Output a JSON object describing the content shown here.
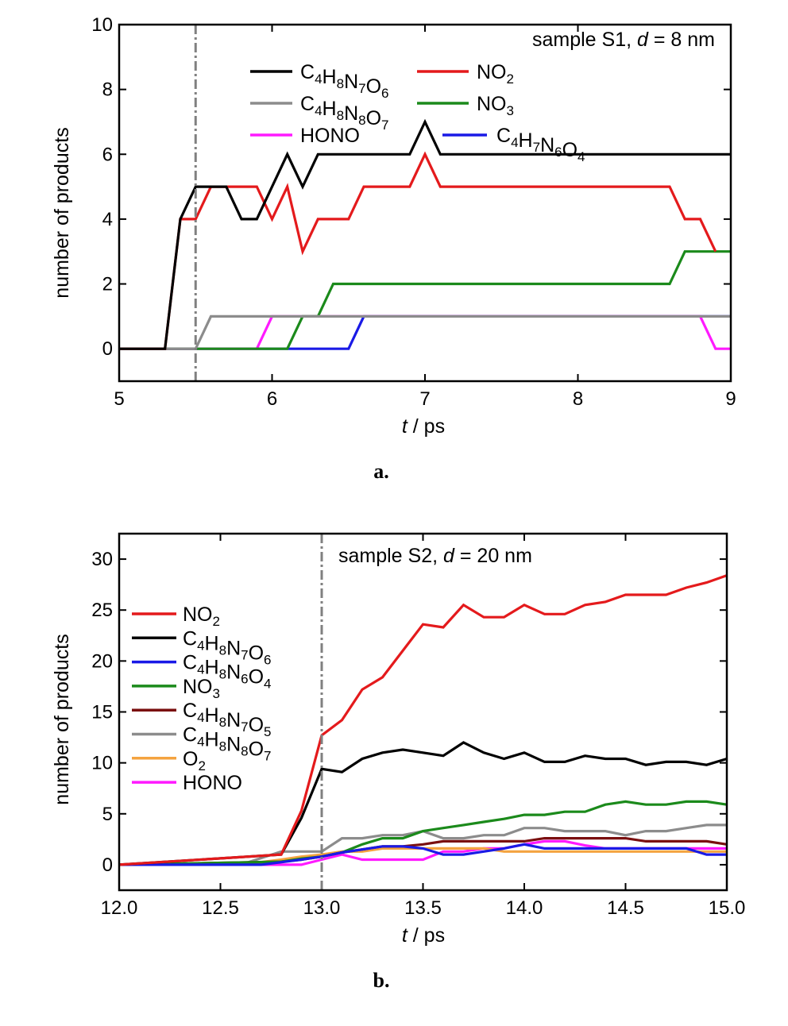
{
  "chart_data": [
    {
      "type": "line",
      "panel_caption": "a.",
      "annotation": "sample S1, d = 8 nm",
      "xlabel": "t / ps",
      "ylabel": "number of products",
      "xlim": [
        5,
        9
      ],
      "ylim": [
        -1,
        10
      ],
      "xticks": [
        5,
        6,
        7,
        8,
        9
      ],
      "yticks": [
        0,
        2,
        4,
        6,
        8,
        10
      ],
      "vline_x": 5.5,
      "legend_layout": "2-column, top",
      "series": [
        {
          "name": "C4H8N7O6",
          "color": "#000000",
          "x": [
            5,
            5.3,
            5.4,
            5.5,
            5.6,
            5.7,
            5.8,
            5.9,
            6.0,
            6.1,
            6.2,
            6.3,
            6.9,
            7.0,
            7.1,
            9.0
          ],
          "y": [
            0,
            0,
            4,
            5,
            5,
            5,
            4,
            4,
            5,
            6,
            5,
            6,
            6,
            7,
            6,
            6
          ]
        },
        {
          "name": "NO2",
          "color": "#e41a1c",
          "x": [
            5,
            5.3,
            5.4,
            5.5,
            5.6,
            5.9,
            6.0,
            6.1,
            6.2,
            6.3,
            6.5,
            6.6,
            6.9,
            7.0,
            7.1,
            8.6,
            8.7,
            8.8,
            8.9
          ],
          "y": [
            0,
            0,
            4,
            4,
            5,
            5,
            4,
            5,
            3,
            4,
            4,
            5,
            5,
            6,
            5,
            5,
            4,
            4,
            3
          ]
        },
        {
          "name": "C4H8N8O7",
          "color": "#8c8c8c",
          "x": [
            5,
            5.5,
            5.6,
            6.3,
            6.4,
            9.0
          ],
          "y": [
            0,
            0,
            1,
            1,
            1,
            1
          ]
        },
        {
          "name": "NO3",
          "color": "#1b8a1b",
          "x": [
            5,
            6.1,
            6.2,
            6.3,
            6.4,
            8.6,
            8.7,
            9.0
          ],
          "y": [
            0,
            0,
            1,
            1,
            2,
            2,
            3,
            3
          ]
        },
        {
          "name": "HONO",
          "color": "#ff1aff",
          "x": [
            5,
            5.9,
            6.0,
            8.8,
            8.9,
            9.0
          ],
          "y": [
            0,
            0,
            1,
            1,
            0,
            0
          ]
        },
        {
          "name": "C4H7N6O4",
          "color": "#1a1ae6",
          "x": [
            5,
            6.5,
            6.6,
            9.0
          ],
          "y": [
            0,
            0,
            1,
            1
          ]
        }
      ]
    },
    {
      "type": "line",
      "panel_caption": "b.",
      "annotation": "sample S2, d = 20 nm",
      "xlabel": "t / ps",
      "ylabel": "number of products",
      "xlim": [
        12.0,
        15.0
      ],
      "ylim": [
        -2.5,
        32.5
      ],
      "xticks": [
        "12.0",
        "12.5",
        "13.0",
        "13.5",
        "14.0",
        "14.5",
        "15.0"
      ],
      "yticks": [
        0,
        5,
        10,
        15,
        20,
        25,
        30
      ],
      "vline_x": 13.0,
      "legend_layout": "1-column, left",
      "series": [
        {
          "name": "NO2",
          "color": "#e41a1c",
          "x": [
            12.0,
            12.8,
            12.9,
            13.0,
            13.1,
            13.2,
            13.3,
            13.4,
            13.5,
            13.6,
            13.7,
            13.8,
            13.9,
            14.0,
            14.1,
            14.2,
            14.3,
            14.4,
            14.5,
            14.6,
            14.7,
            14.8,
            14.9,
            15.0
          ],
          "y": [
            0,
            1,
            5.3,
            12.7,
            14.2,
            17.2,
            18.4,
            21,
            23.6,
            23.3,
            25.5,
            24.3,
            24.3,
            25.5,
            24.6,
            24.6,
            25.5,
            25.8,
            26.5,
            26.5,
            26.5,
            27.2,
            27.7,
            28.4
          ]
        },
        {
          "name": "C4H8N7O6",
          "color": "#000000",
          "x": [
            12.0,
            12.8,
            12.9,
            13.0,
            13.1,
            13.2,
            13.3,
            13.4,
            13.5,
            13.6,
            13.7,
            13.8,
            13.9,
            14.0,
            14.1,
            14.2,
            14.3,
            14.4,
            14.5,
            14.6,
            14.7,
            14.8,
            14.9,
            15.0
          ],
          "y": [
            0,
            1,
            4.6,
            9.4,
            9.1,
            10.4,
            11,
            11.3,
            11,
            10.7,
            12,
            11,
            10.4,
            11,
            10.1,
            10.1,
            10.7,
            10.4,
            10.4,
            9.8,
            10.1,
            10.1,
            9.8,
            10.4
          ]
        },
        {
          "name": "C4H8N6O4",
          "color": "#1a1ae6",
          "x": [
            12.0,
            12.7,
            12.9,
            13.0,
            13.1,
            13.2,
            13.3,
            13.4,
            13.5,
            13.6,
            13.7,
            13.8,
            13.9,
            14.0,
            14.1,
            14.2,
            14.3,
            14.4,
            14.5,
            14.6,
            14.7,
            14.8,
            14.9,
            15.0
          ],
          "y": [
            0,
            0,
            0.5,
            0.8,
            1.2,
            1.5,
            1.8,
            1.8,
            1.6,
            1.0,
            1.0,
            1.3,
            1.6,
            2.0,
            1.6,
            1.6,
            1.6,
            1.6,
            1.6,
            1.6,
            1.6,
            1.6,
            1.0,
            1.0
          ]
        },
        {
          "name": "NO3",
          "color": "#1b8a1b",
          "x": [
            12.0,
            12.8,
            12.9,
            13.0,
            13.1,
            13.2,
            13.3,
            13.4,
            13.5,
            13.6,
            13.7,
            13.8,
            13.9,
            14.0,
            14.1,
            14.2,
            14.3,
            14.4,
            14.5,
            14.6,
            14.7,
            14.8,
            14.9,
            15.0
          ],
          "y": [
            0,
            0.3,
            0.6,
            0.8,
            1.2,
            2.0,
            2.6,
            2.6,
            3.3,
            3.6,
            3.9,
            4.2,
            4.5,
            4.9,
            4.9,
            5.2,
            5.2,
            5.9,
            6.2,
            5.9,
            5.9,
            6.2,
            6.2,
            5.9
          ]
        },
        {
          "name": "C4H8N7O5",
          "color": "#7a0f0f",
          "x": [
            12.0,
            12.8,
            12.9,
            13.0,
            13.1,
            13.2,
            13.3,
            13.4,
            13.5,
            13.6,
            13.7,
            13.8,
            13.9,
            14.0,
            14.1,
            14.2,
            14.3,
            14.4,
            14.5,
            14.6,
            14.7,
            14.8,
            14.9,
            15.0
          ],
          "y": [
            0,
            0.3,
            0.5,
            0.8,
            1.2,
            1.5,
            1.8,
            1.8,
            2.0,
            2.3,
            2.3,
            2.3,
            2.3,
            2.3,
            2.6,
            2.6,
            2.6,
            2.6,
            2.6,
            2.3,
            2.3,
            2.3,
            2.3,
            2.0
          ]
        },
        {
          "name": "C4H8N8O7",
          "color": "#8c8c8c",
          "x": [
            12.0,
            12.6,
            12.8,
            12.9,
            13.0,
            13.1,
            13.2,
            13.3,
            13.4,
            13.5,
            13.6,
            13.7,
            13.8,
            13.9,
            14.0,
            14.1,
            14.2,
            14.3,
            14.4,
            14.5,
            14.6,
            14.7,
            14.8,
            14.9,
            15.0
          ],
          "y": [
            0,
            0,
            1.3,
            1.3,
            1.3,
            2.6,
            2.6,
            2.9,
            2.9,
            3.3,
            2.6,
            2.6,
            2.9,
            2.9,
            3.6,
            3.6,
            3.3,
            3.3,
            3.3,
            2.9,
            3.3,
            3.3,
            3.6,
            3.9,
            3.9
          ]
        },
        {
          "name": "O2",
          "color": "#f4a340",
          "x": [
            12.0,
            12.6,
            12.8,
            12.9,
            13.0,
            13.1,
            13.2,
            13.3,
            13.5,
            13.8,
            13.9,
            14.0,
            15.0
          ],
          "y": [
            0,
            0,
            0.5,
            0.8,
            1.0,
            1.3,
            1.3,
            1.6,
            1.6,
            1.6,
            1.3,
            1.3,
            1.3
          ]
        },
        {
          "name": "HONO",
          "color": "#ff1aff",
          "x": [
            12.0,
            12.9,
            13.0,
            13.1,
            13.2,
            13.3,
            13.4,
            13.5,
            13.6,
            13.7,
            13.8,
            13.9,
            14.0,
            14.1,
            14.2,
            14.3,
            14.4,
            15.0
          ],
          "y": [
            0,
            0,
            0.5,
            1.0,
            0.5,
            0.5,
            0.5,
            0.5,
            1.3,
            1.3,
            1.6,
            1.6,
            2.0,
            2.3,
            2.3,
            1.9,
            1.6,
            1.6
          ]
        }
      ]
    }
  ]
}
